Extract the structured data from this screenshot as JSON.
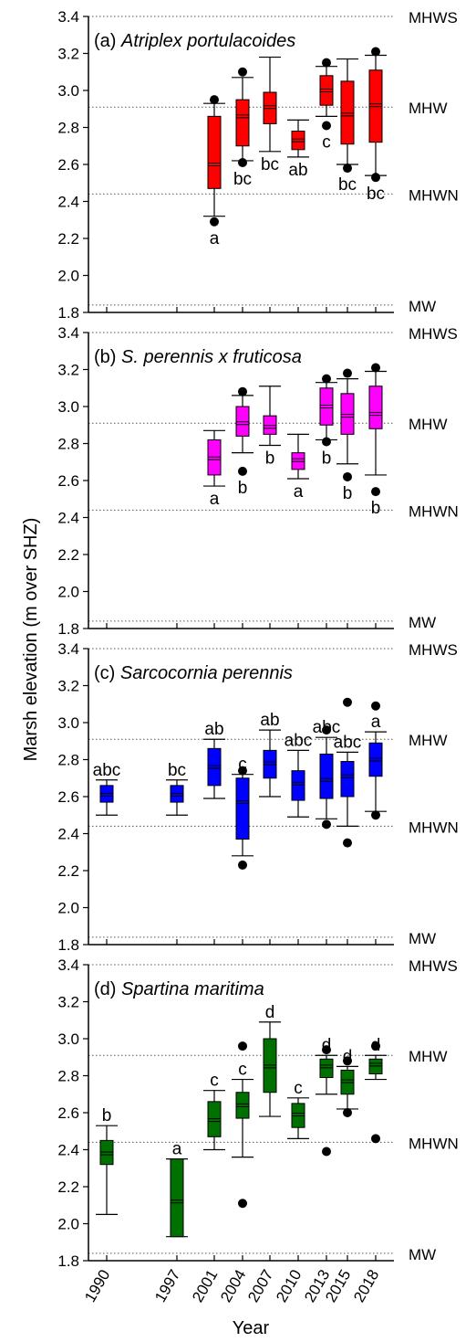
{
  "ylabel": "Marsh elevation (m over SHZ)",
  "xlabel": "Year",
  "reference_lines": [
    {
      "label": "MHWS",
      "value": 3.4
    },
    {
      "label": "MHW",
      "value": 2.91
    },
    {
      "label": "MHWN",
      "value": 2.44
    },
    {
      "label": "MW",
      "value": 1.84
    }
  ],
  "colors": {
    "Atriplex portulacoides": "#ff0000",
    "S. perennis x fruticosa": "#ff00ff",
    "Sarcocornia perennis": "#0000ff",
    "Spartina maritima": "#007000"
  },
  "chart_data": [
    {
      "type": "box",
      "prefix": "(a) ",
      "title": "Atriplex portulacoides",
      "color": "#ff0000",
      "ylim": [
        1.8,
        3.4
      ],
      "yticks": [
        "1.8",
        "2.0",
        "2.2",
        "2.4",
        "2.6",
        "2.8",
        "3.0",
        "3.2",
        "3.4"
      ],
      "categories": [
        "1990",
        "1997",
        "2001",
        "2004",
        "2007",
        "2010",
        "2013",
        "2015",
        "2018"
      ],
      "boxes": [
        {
          "year": 2001,
          "wlo": 2.32,
          "q1": 2.47,
          "med": 2.6,
          "q3": 2.86,
          "whi": 2.93,
          "letter": "a",
          "outliers": [
            2.29,
            2.95
          ]
        },
        {
          "year": 2004,
          "wlo": 2.62,
          "q1": 2.7,
          "med": 2.86,
          "q3": 2.95,
          "whi": 3.07,
          "letter": "bc",
          "outliers": [
            2.61,
            3.1
          ]
        },
        {
          "year": 2007,
          "wlo": 2.67,
          "q1": 2.82,
          "med": 2.91,
          "q3": 2.99,
          "whi": 3.18,
          "letter": "bc",
          "outliers": []
        },
        {
          "year": 2010,
          "wlo": 2.64,
          "q1": 2.68,
          "med": 2.73,
          "q3": 2.78,
          "whi": 2.84,
          "letter": "ab",
          "outliers": []
        },
        {
          "year": 2013,
          "wlo": 2.86,
          "q1": 2.92,
          "med": 3.0,
          "q3": 3.08,
          "whi": 3.13,
          "letter": "c",
          "outliers": [
            2.81,
            3.15
          ]
        },
        {
          "year": 2015,
          "wlo": 2.6,
          "q1": 2.71,
          "med": 2.87,
          "q3": 3.05,
          "whi": 3.17,
          "letter": "bc",
          "outliers": [
            2.58
          ]
        },
        {
          "year": 2018,
          "wlo": 2.54,
          "q1": 2.72,
          "med": 2.92,
          "q3": 3.11,
          "whi": 3.19,
          "letter": "bc",
          "outliers": [
            2.53,
            3.21
          ]
        }
      ]
    },
    {
      "type": "box",
      "prefix": "(b) ",
      "title": "S. perennis x fruticosa",
      "color": "#ff00ff",
      "ylim": [
        1.8,
        3.4
      ],
      "yticks": [
        "1.8",
        "2.0",
        "2.2",
        "2.4",
        "2.6",
        "2.8",
        "3.0",
        "3.2",
        "3.4"
      ],
      "categories": [
        "1990",
        "1997",
        "2001",
        "2004",
        "2007",
        "2010",
        "2013",
        "2015",
        "2018"
      ],
      "boxes": [
        {
          "year": 2001,
          "wlo": 2.57,
          "q1": 2.63,
          "med": 2.72,
          "q3": 2.82,
          "whi": 2.87,
          "letter": "a",
          "outliers": []
        },
        {
          "year": 2004,
          "wlo": 2.75,
          "q1": 2.84,
          "med": 2.91,
          "q3": 3.0,
          "whi": 3.06,
          "letter": "b",
          "outliers": [
            2.65,
            3.08
          ]
        },
        {
          "year": 2007,
          "wlo": 2.79,
          "q1": 2.85,
          "med": 2.89,
          "q3": 2.95,
          "whi": 3.11,
          "letter": "b",
          "outliers": []
        },
        {
          "year": 2010,
          "wlo": 2.61,
          "q1": 2.66,
          "med": 2.71,
          "q3": 2.75,
          "whi": 2.85,
          "letter": "a",
          "outliers": []
        },
        {
          "year": 2013,
          "wlo": 2.82,
          "q1": 2.9,
          "med": 3.0,
          "q3": 3.1,
          "whi": 3.13,
          "letter": "b",
          "outliers": [
            2.81,
            3.15
          ]
        },
        {
          "year": 2015,
          "wlo": 2.69,
          "q1": 2.85,
          "med": 2.95,
          "q3": 3.07,
          "whi": 3.15,
          "letter": "b",
          "outliers": [
            2.62,
            3.18
          ]
        },
        {
          "year": 2018,
          "wlo": 2.63,
          "q1": 2.88,
          "med": 2.96,
          "q3": 3.11,
          "whi": 3.19,
          "letter": "b",
          "outliers": [
            2.54,
            3.21
          ]
        }
      ]
    },
    {
      "type": "box",
      "prefix": "(c) ",
      "title": "Sarcocornia perennis",
      "color": "#0000ff",
      "ylim": [
        1.8,
        3.4
      ],
      "yticks": [
        "1.8",
        "2.0",
        "2.2",
        "2.4",
        "2.6",
        "2.8",
        "3.0",
        "3.2",
        "3.4"
      ],
      "categories": [
        "1990",
        "1997",
        "2001",
        "2004",
        "2007",
        "2010",
        "2013",
        "2015",
        "2018"
      ],
      "boxes": [
        {
          "year": 1990,
          "wlo": 2.5,
          "q1": 2.57,
          "med": 2.61,
          "q3": 2.66,
          "whi": 2.69,
          "letter": "abc",
          "outliers": []
        },
        {
          "year": 1997,
          "wlo": 2.5,
          "q1": 2.57,
          "med": 2.61,
          "q3": 2.66,
          "whi": 2.69,
          "letter": "bc",
          "outliers": []
        },
        {
          "year": 2001,
          "wlo": 2.59,
          "q1": 2.66,
          "med": 2.76,
          "q3": 2.86,
          "whi": 2.91,
          "letter": "ab",
          "outliers": []
        },
        {
          "year": 2004,
          "wlo": 2.28,
          "q1": 2.37,
          "med": 2.57,
          "q3": 2.7,
          "whi": 2.72,
          "letter": "c",
          "outliers": [
            2.23,
            2.74
          ]
        },
        {
          "year": 2007,
          "wlo": 2.6,
          "q1": 2.7,
          "med": 2.78,
          "q3": 2.85,
          "whi": 2.96,
          "letter": "ab",
          "outliers": []
        },
        {
          "year": 2010,
          "wlo": 2.49,
          "q1": 2.58,
          "med": 2.67,
          "q3": 2.74,
          "whi": 2.85,
          "letter": "abc",
          "outliers": []
        },
        {
          "year": 2013,
          "wlo": 2.48,
          "q1": 2.59,
          "med": 2.69,
          "q3": 2.83,
          "whi": 2.92,
          "letter": "abc",
          "outliers": [
            2.45,
            2.96
          ]
        },
        {
          "year": 2015,
          "wlo": 2.44,
          "q1": 2.6,
          "med": 2.71,
          "q3": 2.79,
          "whi": 2.84,
          "letter": "abc",
          "outliers": [
            2.35,
            3.11
          ]
        },
        {
          "year": 2018,
          "wlo": 2.52,
          "q1": 2.71,
          "med": 2.8,
          "q3": 2.89,
          "whi": 2.95,
          "letter": "a",
          "outliers": [
            2.5,
            3.09
          ]
        }
      ]
    },
    {
      "type": "box",
      "prefix": "(d) ",
      "title": "Spartina maritima",
      "color": "#007000",
      "ylim": [
        1.8,
        3.4
      ],
      "yticks": [
        "1.8",
        "2.0",
        "2.2",
        "2.4",
        "2.6",
        "2.8",
        "3.0",
        "3.2",
        "3.4"
      ],
      "categories": [
        "1990",
        "1997",
        "2001",
        "2004",
        "2007",
        "2010",
        "2013",
        "2015",
        "2018"
      ],
      "boxes": [
        {
          "year": 1990,
          "wlo": 2.05,
          "q1": 2.32,
          "med": 2.38,
          "q3": 2.45,
          "whi": 2.53,
          "letter": "b",
          "outliers": []
        },
        {
          "year": 1997,
          "wlo": 1.93,
          "q1": 1.93,
          "med": 2.12,
          "q3": 2.35,
          "whi": 2.35,
          "letter": "a",
          "outliers": []
        },
        {
          "year": 2001,
          "wlo": 2.4,
          "q1": 2.47,
          "med": 2.56,
          "q3": 2.66,
          "whi": 2.72,
          "letter": "c",
          "outliers": []
        },
        {
          "year": 2004,
          "wlo": 2.36,
          "q1": 2.57,
          "med": 2.64,
          "q3": 2.71,
          "whi": 2.78,
          "letter": "c",
          "outliers": [
            2.11,
            2.96
          ]
        },
        {
          "year": 2007,
          "wlo": 2.58,
          "q1": 2.71,
          "med": 2.85,
          "q3": 3.0,
          "whi": 3.09,
          "letter": "d",
          "outliers": []
        },
        {
          "year": 2010,
          "wlo": 2.46,
          "q1": 2.52,
          "med": 2.59,
          "q3": 2.65,
          "whi": 2.68,
          "letter": "c",
          "outliers": []
        },
        {
          "year": 2013,
          "wlo": 2.7,
          "q1": 2.79,
          "med": 2.85,
          "q3": 2.89,
          "whi": 2.91,
          "letter": "d",
          "outliers": [
            2.39,
            2.94
          ]
        },
        {
          "year": 2015,
          "wlo": 2.62,
          "q1": 2.7,
          "med": 2.77,
          "q3": 2.83,
          "whi": 2.85,
          "letter": "d",
          "outliers": [
            2.6,
            2.88
          ]
        },
        {
          "year": 2018,
          "wlo": 2.78,
          "q1": 2.81,
          "med": 2.86,
          "q3": 2.89,
          "whi": 2.91,
          "letter": "d",
          "outliers": [
            2.46,
            2.96
          ]
        }
      ]
    }
  ]
}
